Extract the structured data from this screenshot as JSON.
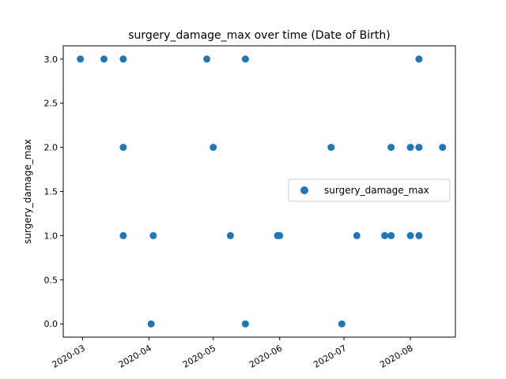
{
  "chart_data": {
    "type": "scatter",
    "title": "surgery_damage_max over time (Date of Birth)",
    "xlabel": "",
    "ylabel": "surgery_damage_max",
    "x_type": "date",
    "xlim": [
      "2020-02-21",
      "2020-08-22"
    ],
    "ylim": [
      -0.15,
      3.15
    ],
    "x_ticks": [
      "2020-03",
      "2020-04",
      "2020-05",
      "2020-06",
      "2020-07",
      "2020-08"
    ],
    "y_ticks": [
      "0.0",
      "0.5",
      "1.0",
      "1.5",
      "2.0",
      "2.5",
      "3.0"
    ],
    "grid": false,
    "legend": "center-right",
    "color": "#1f77b4",
    "series": [
      {
        "name": "surgery_damage_max",
        "points": [
          {
            "x": "2020-02-29",
            "y": 3
          },
          {
            "x": "2020-03-11",
            "y": 3
          },
          {
            "x": "2020-03-20",
            "y": 3
          },
          {
            "x": "2020-03-20",
            "y": 2
          },
          {
            "x": "2020-03-20",
            "y": 1
          },
          {
            "x": "2020-04-02",
            "y": 0
          },
          {
            "x": "2020-04-03",
            "y": 1
          },
          {
            "x": "2020-04-28",
            "y": 3
          },
          {
            "x": "2020-05-01",
            "y": 2
          },
          {
            "x": "2020-05-09",
            "y": 1
          },
          {
            "x": "2020-05-16",
            "y": 3
          },
          {
            "x": "2020-05-16",
            "y": 0
          },
          {
            "x": "2020-05-31",
            "y": 1
          },
          {
            "x": "2020-06-01",
            "y": 1
          },
          {
            "x": "2020-06-25",
            "y": 2
          },
          {
            "x": "2020-06-30",
            "y": 0
          },
          {
            "x": "2020-07-07",
            "y": 1
          },
          {
            "x": "2020-07-20",
            "y": 1
          },
          {
            "x": "2020-07-23",
            "y": 2
          },
          {
            "x": "2020-07-23",
            "y": 1
          },
          {
            "x": "2020-08-01",
            "y": 2
          },
          {
            "x": "2020-08-01",
            "y": 1
          },
          {
            "x": "2020-08-05",
            "y": 3
          },
          {
            "x": "2020-08-05",
            "y": 2
          },
          {
            "x": "2020-08-05",
            "y": 1
          },
          {
            "x": "2020-08-16",
            "y": 2
          }
        ]
      }
    ]
  }
}
